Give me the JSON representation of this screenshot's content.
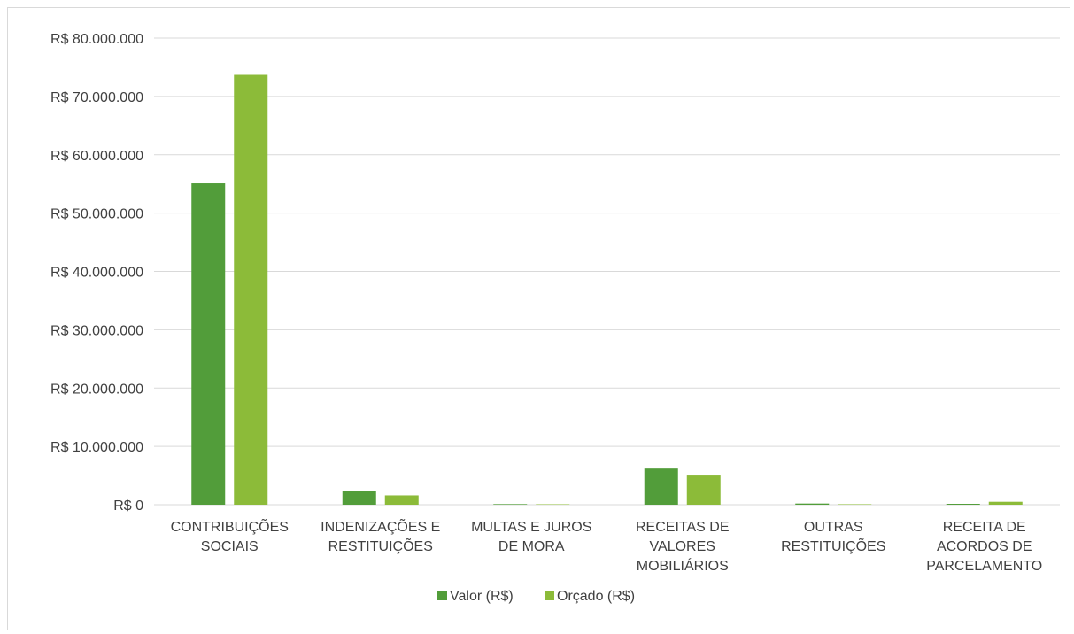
{
  "chart_data": {
    "type": "bar",
    "title": "",
    "xlabel": "",
    "ylabel": "",
    "ylim": [
      0,
      80000000
    ],
    "y_tick_step": 10000000,
    "y_ticks": [
      "R$ 0",
      "R$ 10.000.000",
      "R$ 20.000.000",
      "R$ 30.000.000",
      "R$ 40.000.000",
      "R$ 50.000.000",
      "R$ 60.000.000",
      "R$ 70.000.000",
      "R$ 80.000.000"
    ],
    "grid": true,
    "legend_position": "bottom",
    "categories": [
      [
        "CONTRIBUIÇÕES",
        "SOCIAIS"
      ],
      [
        "INDENIZAÇÕES E",
        "RESTITUIÇÕES"
      ],
      [
        "MULTAS E JUROS",
        "DE MORA"
      ],
      [
        "RECEITAS DE",
        "VALORES",
        "MOBILIÁRIOS"
      ],
      [
        "OUTRAS",
        "RESTITUIÇÕES"
      ],
      [
        "RECEITA DE",
        "ACORDOS DE",
        "PARCELAMENTO"
      ]
    ],
    "series": [
      {
        "name": "Valor (R$)",
        "color": "#529d3a",
        "values": [
          55100000,
          2400000,
          100000,
          6200000,
          200000,
          150000
        ]
      },
      {
        "name": "Orçado (R$)",
        "color": "#8cbb39",
        "values": [
          73700000,
          1600000,
          50000,
          5000000,
          80000,
          500000
        ]
      }
    ]
  }
}
